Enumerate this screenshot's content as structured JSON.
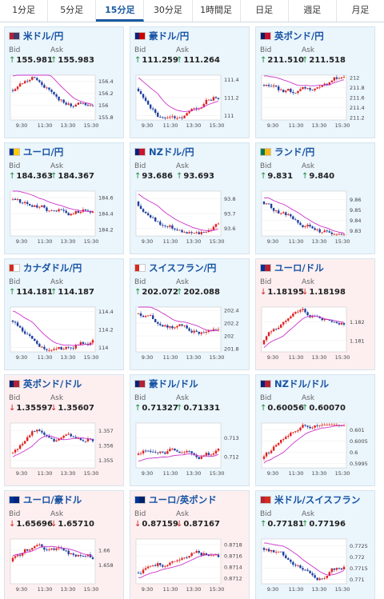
{
  "tabs": [
    "1分足",
    "5分足",
    "15分足",
    "30分足",
    "1時間足",
    "日足",
    "週足",
    "月足"
  ],
  "active_tab": 2,
  "bid_label": "Bid",
  "ask_label": "Ask",
  "time_labels": [
    "9:30",
    "11:30",
    "13:30",
    "15:30"
  ],
  "colors": {
    "up_card_bg": "#eaf5fc",
    "down_card_bg": "#fdeff0",
    "candle_up": "#e02020",
    "candle_down": "#1f3f9f",
    "ma_line": "#cc33cc",
    "link": "#1753a3"
  },
  "pairs": [
    {
      "name": "米ドル/円",
      "flag": "US",
      "direction": "up",
      "bid": "155.981",
      "ask": "155.983",
      "y_ticks": [
        "156.4",
        "156.2",
        "156",
        "155.8"
      ],
      "ylim": [
        155.75,
        156.5
      ],
      "start": 156.25,
      "trend": [
        0.2,
        -0.25,
        -0.15,
        0.1
      ],
      "ma_offset": 0.25
    },
    {
      "name": "豪ドル/円",
      "flag": "AU",
      "direction": "up",
      "bid": "111.259",
      "ask": "111.264",
      "y_ticks": [
        "111.4",
        "111.2",
        "111"
      ],
      "ylim": [
        110.95,
        111.45
      ],
      "start": 111.3,
      "trend": [
        -0.15,
        -0.15,
        0.15,
        0.15
      ],
      "ma_offset": 0.15
    },
    {
      "name": "英ポンド/円",
      "flag": "GB",
      "direction": "up",
      "bid": "211.510",
      "ask": "211.518",
      "y_ticks": [
        "212",
        "211.8",
        "211.6",
        "211.4",
        "211.2"
      ],
      "ylim": [
        211.15,
        212.05
      ],
      "start": 211.85,
      "trend": [
        -0.2,
        -0.1,
        -0.15,
        0.1
      ],
      "ma_offset": 0.2
    },
    {
      "name": "ユーロ/円",
      "flag": "EU",
      "direction": "up",
      "bid": "184.363",
      "ask": "184.367",
      "y_ticks": [
        "184.6",
        "184.4",
        "184.2"
      ],
      "ylim": [
        184.12,
        184.68
      ],
      "start": 184.58,
      "trend": [
        -0.15,
        -0.1,
        -0.05,
        0.1
      ],
      "ma_offset": 0.12
    },
    {
      "name": "NZドル/円",
      "flag": "NZ",
      "direction": "up",
      "bid": "93.686",
      "ask": "93.693",
      "y_ticks": [
        "93.8",
        "93.7",
        "93.6"
      ],
      "ylim": [
        93.55,
        93.85
      ],
      "start": 93.78,
      "trend": [
        -0.1,
        -0.05,
        -0.03,
        0.1
      ],
      "ma_offset": 0.08
    },
    {
      "name": "ランド/円",
      "flag": "ZA",
      "direction": "up",
      "bid": "9.831",
      "ask": "9.840",
      "y_ticks": [
        "9.86",
        "9.85",
        "9.84",
        "9.83"
      ],
      "ylim": [
        9.825,
        9.868
      ],
      "start": 9.858,
      "trend": [
        -0.012,
        -0.008,
        -0.004,
        0.004
      ],
      "ma_offset": 0.006
    },
    {
      "name": "カナダドル/円",
      "flag": "CA",
      "direction": "up",
      "bid": "114.181",
      "ask": "114.187",
      "y_ticks": [
        "114.4",
        "114.2",
        "114"
      ],
      "ylim": [
        113.95,
        114.45
      ],
      "start": 114.3,
      "trend": [
        -0.12,
        -0.08,
        -0.05,
        0.1
      ],
      "ma_offset": 0.12
    },
    {
      "name": "スイスフラン/円",
      "flag": "CH",
      "direction": "up",
      "bid": "202.072",
      "ask": "202.088",
      "y_ticks": [
        "202.4",
        "202.2",
        "202",
        "201.8"
      ],
      "ylim": [
        201.75,
        202.45
      ],
      "start": 202.35,
      "trend": [
        -0.15,
        -0.1,
        -0.05,
        0.05
      ],
      "ma_offset": 0.15
    },
    {
      "name": "ユーロ/ドル",
      "flag": "EU_US",
      "direction": "down",
      "bid": "1.18195",
      "ask": "1.18198",
      "y_ticks": [
        "1.182",
        "1.181"
      ],
      "ylim": [
        1.1804,
        1.1828
      ],
      "start": 1.1808,
      "trend": [
        0.0008,
        0.0006,
        -0.0003,
        -0.0002
      ],
      "ma_offset": -0.0004
    },
    {
      "name": "英ポンド/ドル",
      "flag": "GB_US",
      "direction": "down",
      "bid": "1.35597",
      "ask": "1.35607",
      "y_ticks": [
        "1.357",
        "1.356",
        "1.355"
      ],
      "ylim": [
        1.3545,
        1.3575
      ],
      "start": 1.3555,
      "trend": [
        0.0012,
        -0.0004,
        -0.0003,
        0.0001
      ],
      "ma_offset": -0.0003
    },
    {
      "name": "豪ドル/ドル",
      "flag": "AU_US",
      "direction": "up",
      "bid": "0.71327",
      "ask": "0.71331",
      "y_ticks": [
        "0.713",
        "0.712"
      ],
      "ylim": [
        0.7114,
        0.7138
      ],
      "start": 0.7121,
      "trend": [
        0.0007,
        0.0002,
        0.0001,
        0.0002
      ],
      "ma_offset": -0.0004
    },
    {
      "name": "NZドル/ドル",
      "flag": "NZ_US",
      "direction": "up",
      "bid": "0.60056",
      "ask": "0.60070",
      "y_ticks": [
        "0.601",
        "0.6005",
        "0.6",
        "0.5995"
      ],
      "ylim": [
        0.5993,
        0.6013
      ],
      "start": 0.5997,
      "trend": [
        0.0006,
        0.0003,
        0.0001,
        0.0001
      ],
      "ma_offset": -0.0003
    },
    {
      "name": "ユーロ/豪ドル",
      "flag": "EU_AU",
      "direction": "down",
      "bid": "1.65696",
      "ask": "1.65710",
      "y_ticks": [
        "1.66",
        "1.658"
      ],
      "ylim": [
        1.6555,
        1.6615
      ],
      "start": 1.6585,
      "trend": [
        0.0015,
        -0.0005,
        -0.001,
        -0.0005
      ],
      "ma_offset": 0.0003
    },
    {
      "name": "ユーロ/英ポンド",
      "flag": "EU_GB",
      "direction": "down",
      "bid": "0.87159",
      "ask": "0.87167",
      "y_ticks": [
        "0.8718",
        "0.8716",
        "0.8714",
        "0.8712"
      ],
      "ylim": [
        0.8711,
        0.8719
      ],
      "start": 0.8713,
      "trend": [
        0.0002,
        0.0001,
        0.0001,
        0.0
      ],
      "ma_offset": -8e-05
    },
    {
      "name": "米ドル/スイスフラン",
      "flag": "US_CH",
      "direction": "up",
      "bid": "0.77181",
      "ask": "0.77196",
      "y_ticks": [
        "0.7725",
        "0.772",
        "0.7715",
        "0.771"
      ],
      "ylim": [
        0.7708,
        0.7728
      ],
      "start": 0.7724,
      "trend": [
        -0.0005,
        -0.0003,
        -0.0002,
        0.0004
      ],
      "ma_offset": 0.0003
    }
  ]
}
